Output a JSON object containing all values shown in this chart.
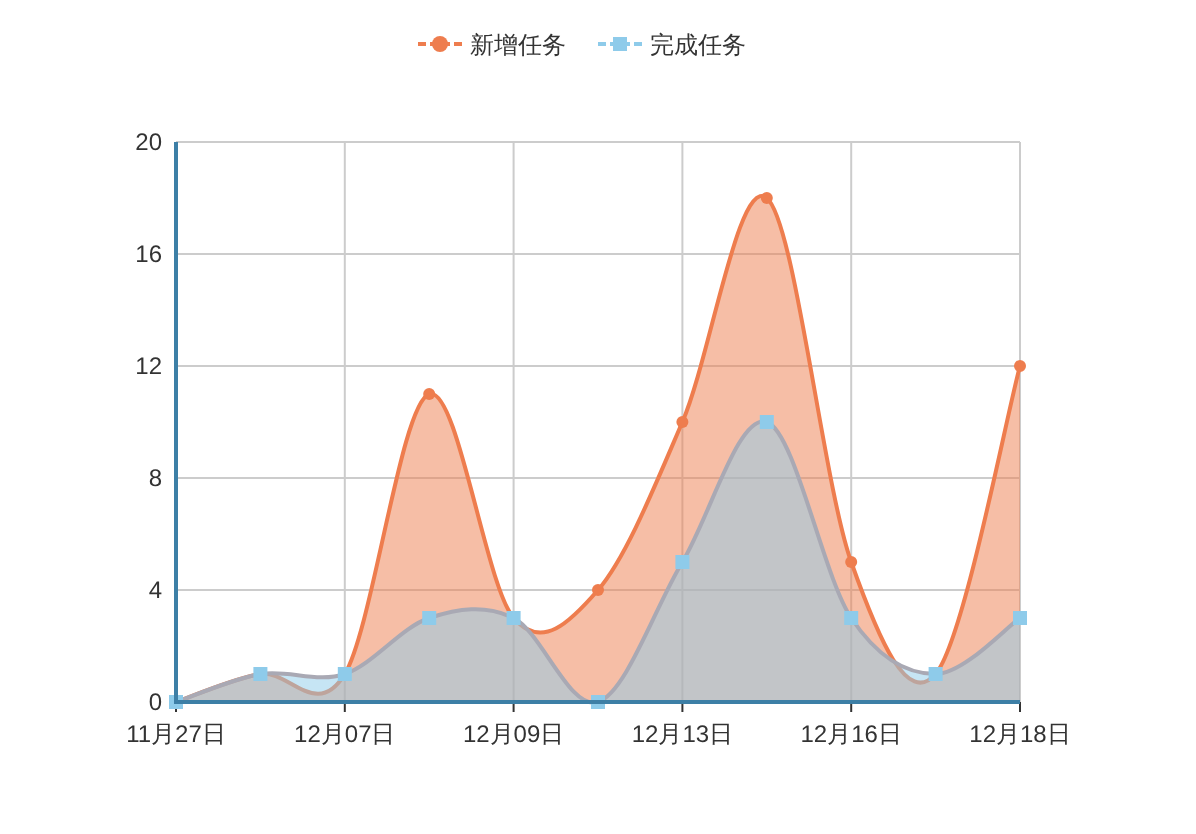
{
  "chart_data": {
    "type": "area",
    "categories": [
      "11月27日",
      null,
      "12月07日",
      null,
      "12月09日",
      null,
      "12月13日",
      null,
      "12月16日",
      null,
      "12月18日"
    ],
    "series": [
      {
        "name": "新增任务",
        "color": "#ee7d4e",
        "marker": "circle",
        "values": [
          0,
          1,
          1,
          11,
          3,
          4,
          10,
          18,
          5,
          1,
          12
        ]
      },
      {
        "name": "完成任务",
        "color": "#8ecbea",
        "marker": "square",
        "values": [
          0,
          1,
          1,
          3,
          3,
          0,
          5,
          10,
          3,
          1,
          3
        ]
      }
    ],
    "ylim": [
      0,
      20
    ],
    "yticks": [
      0,
      4,
      8,
      12,
      16,
      20
    ],
    "grid": true,
    "legend": "top"
  }
}
